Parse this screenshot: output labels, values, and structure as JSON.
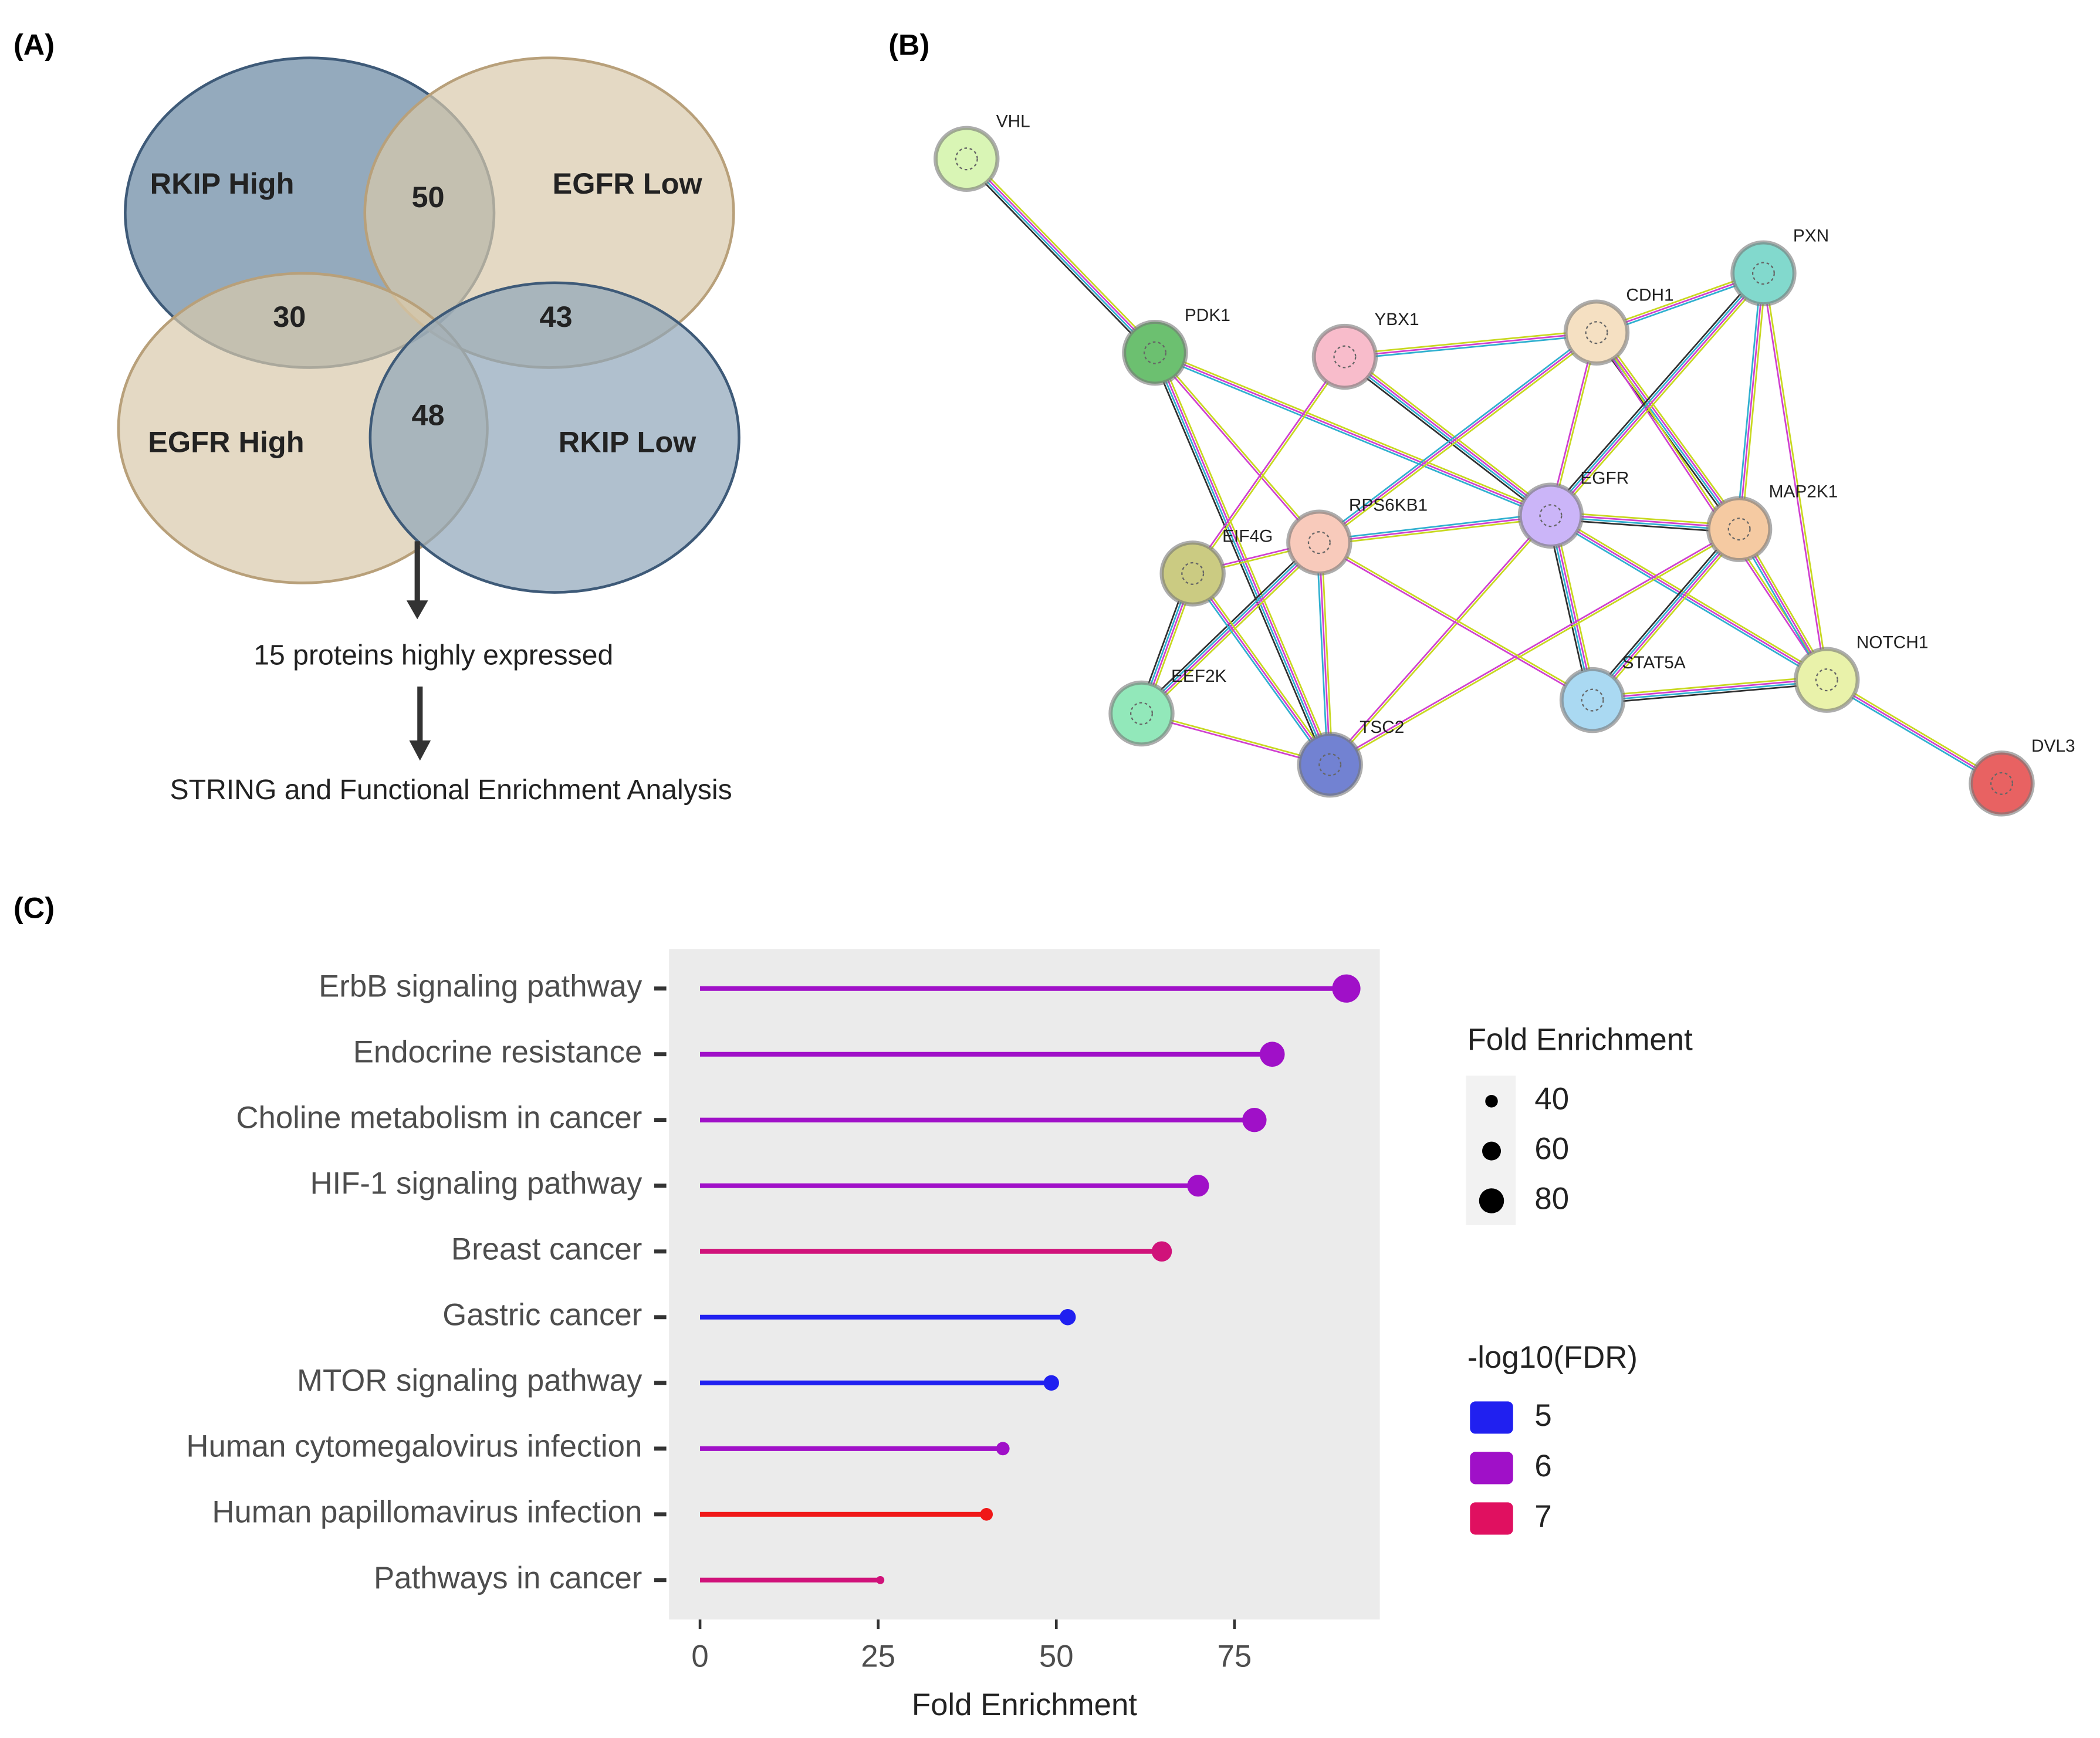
{
  "panels": {
    "a": "(A)",
    "b": "(B)",
    "c": "(C)"
  },
  "venn": {
    "sets": [
      "RKIP High",
      "EGFR Low",
      "EGFR High",
      "RKIP Low"
    ],
    "regions": [
      50,
      30,
      43,
      48
    ],
    "steps": [
      "15 proteins highly expressed",
      "STRING and Functional Enrichment Analysis"
    ]
  },
  "network": {
    "nodes": [
      {
        "label": "VHL",
        "color": "#d9f5b5"
      },
      {
        "label": "PDK1",
        "color": "#6cc070"
      },
      {
        "label": "YBX1",
        "color": "#f8bccb"
      },
      {
        "label": "CDH1",
        "color": "#f5e0c2"
      },
      {
        "label": "PXN",
        "color": "#82d9cd"
      },
      {
        "label": "EGFR",
        "color": "#cbb5f8"
      },
      {
        "label": "MAP2K1",
        "color": "#f5caa2"
      },
      {
        "label": "RPS6KB1",
        "color": "#f8cabb"
      },
      {
        "label": "EIF4G",
        "color": "#cbcb82"
      },
      {
        "label": "EEF2K",
        "color": "#92e8ba"
      },
      {
        "label": "TSC2",
        "color": "#7282d2"
      },
      {
        "label": "STAT5A",
        "color": "#aad9f2"
      },
      {
        "label": "NOTCH1",
        "color": "#e9f2aa"
      },
      {
        "label": "DVL3",
        "color": "#e86262"
      }
    ]
  },
  "chart_data": {
    "type": "lollipop",
    "xlabel": "Fold Enrichment",
    "categories": [
      "ErbB signaling pathway",
      "Endocrine resistance",
      "Choline metabolism in cancer",
      "HIF-1 signaling pathway",
      "Breast cancer",
      "Gastric cancer",
      "MTOR signaling pathway",
      "Human cytomegalovirus infection",
      "Human papillomavirus infection",
      "Pathways in cancer"
    ],
    "values": [
      90.7,
      80.3,
      77.8,
      69.9,
      64.8,
      51.6,
      49.3,
      42.5,
      40.2,
      25.3
    ],
    "colors": [
      "#a010c8",
      "#a010c8",
      "#a010c8",
      "#a010c8",
      "#d0127a",
      "#2020f0",
      "#2020f0",
      "#a010c8",
      "#f01818",
      "#d0127a"
    ],
    "xlim": [
      -4.35,
      95.4
    ],
    "xticks": [
      0,
      25,
      50,
      75
    ],
    "size_legend": {
      "title": "Fold Enrichment",
      "values": [
        40,
        60,
        80
      ]
    },
    "color_legend": {
      "title": "-log10(FDR)",
      "values": [
        5,
        6,
        7
      ],
      "colors": [
        "#2020f0",
        "#a010c8",
        "#e01060"
      ]
    }
  }
}
